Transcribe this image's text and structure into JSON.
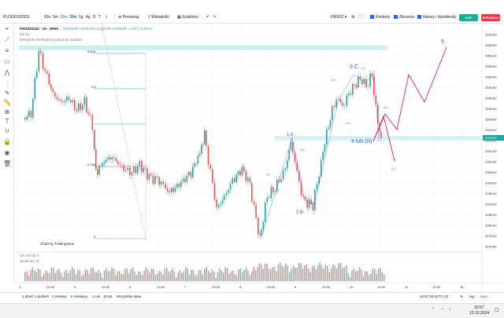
{
  "toolbar": {
    "symbol": "PLOGF002931",
    "intervals": [
      "60s",
      "5m",
      "15m",
      "30m",
      "1g",
      "4g",
      "D",
      "T"
    ],
    "active_interval": "15m",
    "compare_label": "Porównaj",
    "indicators_label": "Wskaźniki",
    "templates_label": "Szablony",
    "instrument": "FW20Z",
    "konkety_label": "Konkety",
    "zlecenia_label": "Zlecenia",
    "news_label": "Newsy i dywidendy",
    "buy_label": "KUP",
    "sell_label": "SPRZEDAJ"
  },
  "legend": {
    "title": "FW20Z2420 · 15 · WWA",
    "ohlc": "O2329,00 H2330,00 L2328,00 C2329,00 −1,00 (−0,04%)",
    "volume_line": "Vol 11",
    "indicator_line": "Wskaźnik Średnia Krocząca 10 Szablon",
    "volume_title": "Wolumen  11",
    "mavol_title": "MA Vol 20  5"
  },
  "fib_labels": [
    "0.618",
    "0.5",
    "0.236",
    "0"
  ],
  "wave_labels": {
    "w3c": "3 C",
    "w5": "5",
    "w1a": "1 A",
    "w2b": "2 B",
    "w4": "4 lub (iii)",
    "ii": "(ii)",
    "iv": "(iv)",
    "v": "(v)",
    "i": "(i)",
    "iii": "(iii)"
  },
  "price_axis": [
    "2370,00",
    "2365,00",
    "2360,00",
    "2355,00",
    "2350,00",
    "2345,00",
    "2340,00",
    "2335,00",
    "2330,00",
    "2325,00",
    "2320,00",
    "2315,00",
    "2310,00",
    "2305,00",
    "2300,00",
    "2295,00",
    "2290,00",
    "2285,00",
    "2280,00",
    "2275,00",
    "2270,00"
  ],
  "current_price": "2329,00",
  "time_axis": [
    "2",
    "12:00",
    "3",
    "12:00",
    "4",
    "12:00",
    "7",
    "12:00",
    "8",
    "12:00",
    "9",
    "12:00",
    "10",
    "12:00",
    "11",
    "12:00",
    "14"
  ],
  "attribution": "Chart by TradingView",
  "bottom": {
    "ranges": [
      "1 dzień",
      "1 tydzień",
      "1 miesiąc",
      "6 miesięcy",
      "1 rok",
      "10 lat",
      "Wszystkie dane"
    ],
    "clock": "10:57:18 (UTC+2)",
    "percent": "%",
    "log": "log",
    "auto": "auto"
  },
  "taskbar": {
    "time": "10:57",
    "date": "10.10.2024"
  },
  "colors": {
    "up": "#26a69a",
    "down": "#ef5350",
    "wave_blue": "#2962ff",
    "forecast": "#e91e63",
    "fib_box": "#b2ebf2"
  }
}
